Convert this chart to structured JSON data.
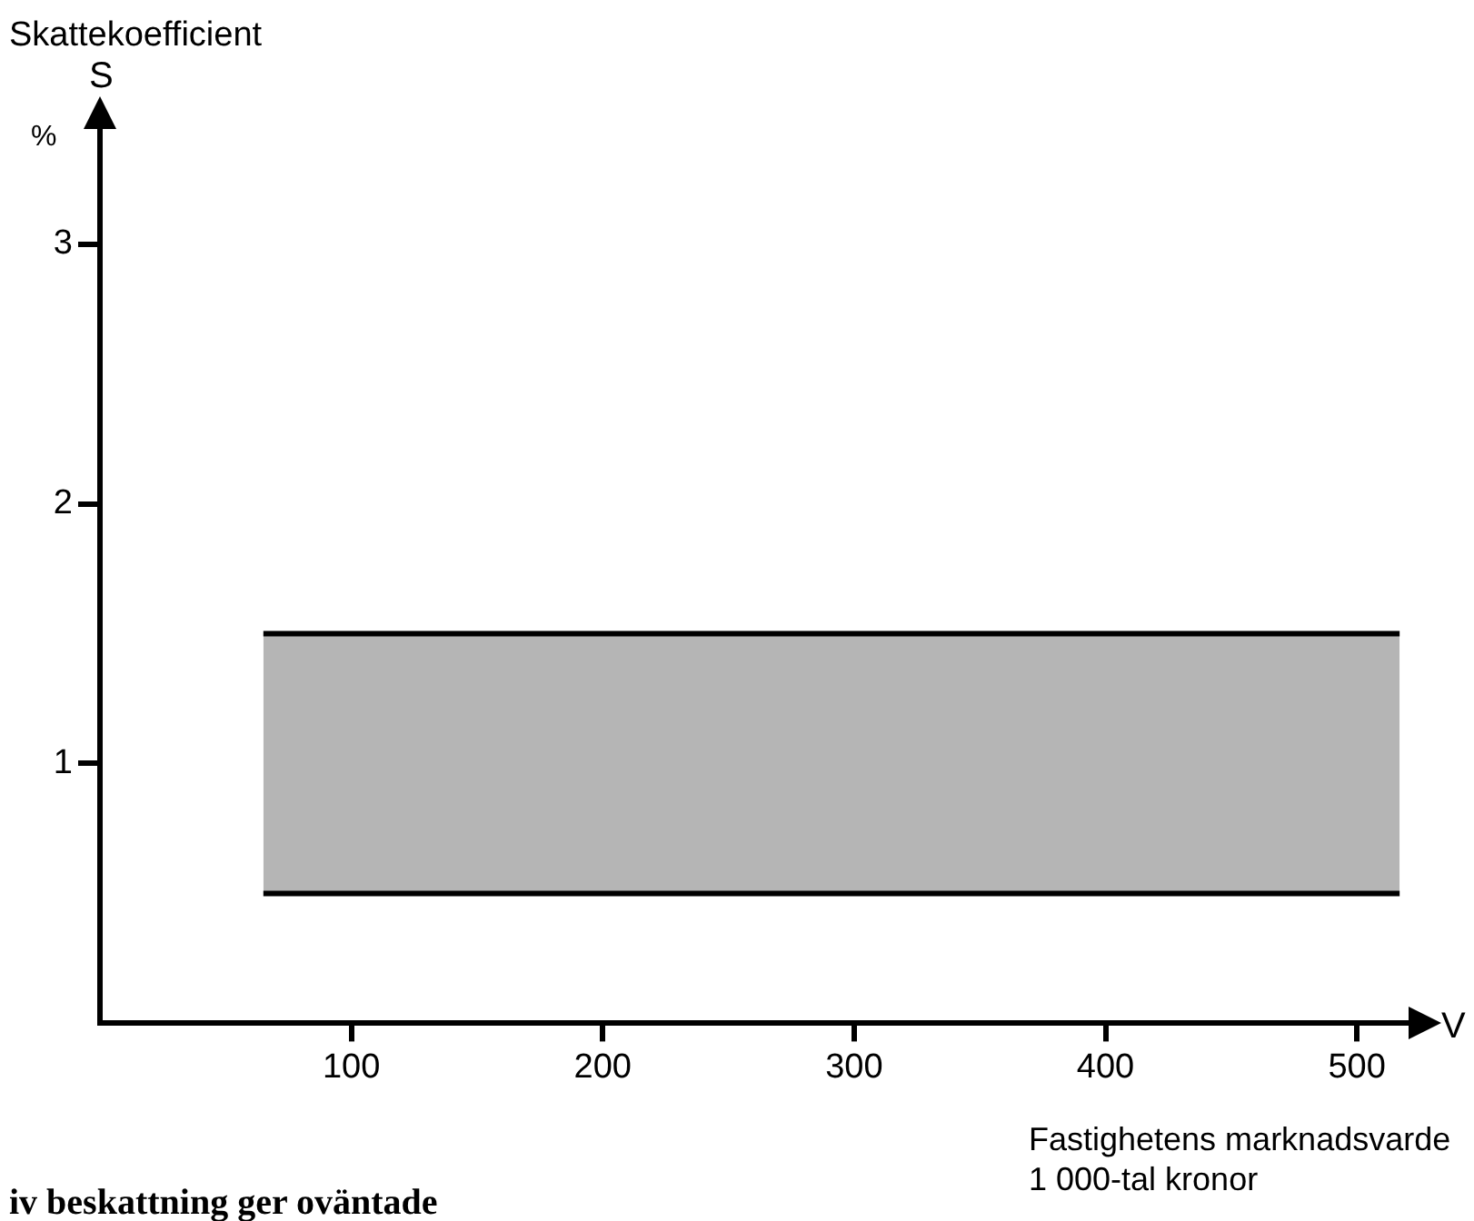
{
  "chart_data": {
    "type": "area",
    "ylabel": "Skattekoefficient",
    "xlabel": "Fastighetens marknadsvarde\n1 000-tal kronor",
    "annotations": [
      "S",
      "%",
      "V",
      "iv beskattning ger oväntade"
    ],
    "xlim": [
      0,
      522
    ],
    "ylim": [
      0,
      3.45
    ],
    "xticks": [
      100,
      200,
      300,
      400,
      500
    ],
    "yticks": [
      1,
      2,
      3
    ],
    "x": [
      65,
      517
    ],
    "series": [
      {
        "type": "line",
        "values": [
          0.5,
          0.5
        ],
        "color": "#000000"
      },
      {
        "type": "area",
        "values": [
          1.5,
          1.5
        ],
        "color": "#000000"
      }
    ]
  }
}
